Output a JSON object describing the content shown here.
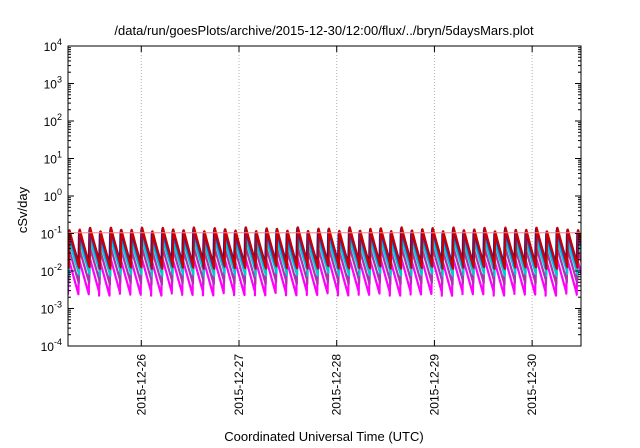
{
  "chart_data": {
    "type": "line",
    "title": "/data/run/goesPlots/archive/2015-12-30/12:00/flux/../bryn/5daysMars.plot",
    "xlabel": "Coordinated Universal Time (UTC)",
    "ylabel": "cSv/day",
    "y_scale": "log",
    "ylim": [
      0.0001,
      10000
    ],
    "xlim": [
      "2015-12-25T06:00",
      "2015-12-30T12:00"
    ],
    "y_ticks": [
      {
        "base": "10",
        "exp": "-4",
        "value": 0.0001
      },
      {
        "base": "10",
        "exp": "-3",
        "value": 0.001
      },
      {
        "base": "10",
        "exp": "-2",
        "value": 0.01
      },
      {
        "base": "10",
        "exp": "-1",
        "value": 0.1
      },
      {
        "base": "10",
        "exp": "0",
        "value": 1
      },
      {
        "base": "10",
        "exp": "1",
        "value": 10
      },
      {
        "base": "10",
        "exp": "2",
        "value": 100
      },
      {
        "base": "10",
        "exp": "3",
        "value": 1000
      },
      {
        "base": "10",
        "exp": "4",
        "value": 10000
      }
    ],
    "x_ticks": [
      {
        "label": "2015-12-26",
        "value": "2015-12-26T00:00"
      },
      {
        "label": "2015-12-27",
        "value": "2015-12-27T00:00"
      },
      {
        "label": "2015-12-28",
        "value": "2015-12-28T00:00"
      },
      {
        "label": "2015-12-29",
        "value": "2015-12-29T00:00"
      },
      {
        "label": "2015-12-30",
        "value": "2015-12-30T00:00"
      }
    ],
    "grid": true,
    "pattern": "sawtooth",
    "sawtooth_period_hours": 2.55,
    "series": [
      {
        "color": "#ff7f7f",
        "peak": 0.105,
        "trough": 0.105
      },
      {
        "color": "#00008b",
        "peak": 0.125,
        "trough": 0.016
      },
      {
        "color": "#cc0000",
        "peak": 0.13,
        "trough": 0.013
      },
      {
        "color": "#ff00ff",
        "peak": 0.022,
        "trough": 0.0025
      },
      {
        "color": "#00cccc",
        "peak": 0.06,
        "trough": 0.0085
      },
      {
        "color": "#2255ee",
        "peak": 0.11,
        "trough": 0.014
      },
      {
        "color": "#b030b0",
        "peak": 0.04,
        "trough": 0.005
      }
    ]
  }
}
